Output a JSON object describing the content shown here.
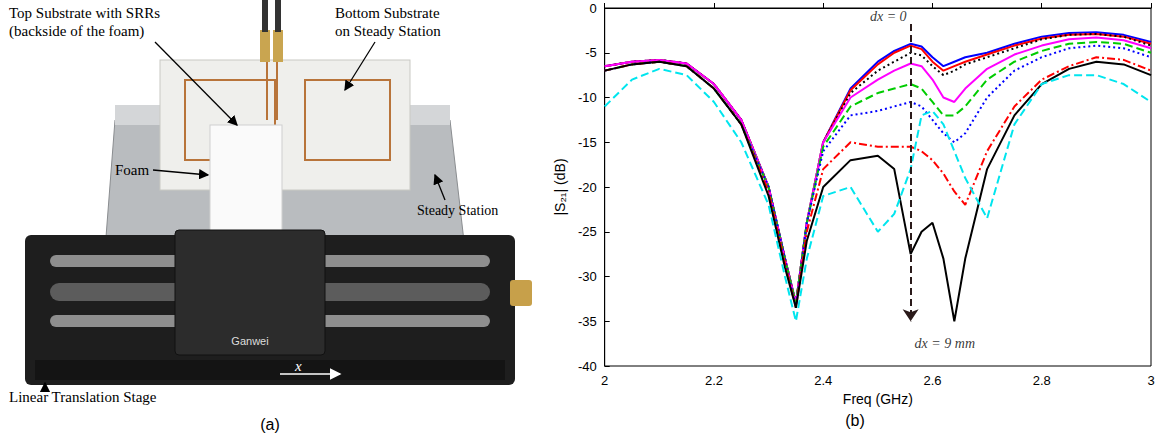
{
  "panel_a": {
    "caption": "(a)",
    "labels": {
      "top_substrate": [
        "Top Substrate with SRRs",
        "(backside of the foam)"
      ],
      "bottom_substrate": [
        "Bottom Substrate",
        "on Steady Station"
      ],
      "foam": [
        "Foam"
      ],
      "steady_station": [
        "Steady Station"
      ],
      "stage": [
        "Linear Translation Stage"
      ],
      "axis": [
        "x"
      ],
      "brand": [
        "Ganwei"
      ]
    }
  },
  "chart_data": {
    "type": "line",
    "caption": "(b)",
    "x_label": "Freq (GHz)",
    "y_label": "|S₂₁| (dB)",
    "x": [
      2.0,
      2.05,
      2.1,
      2.15,
      2.2,
      2.25,
      2.3,
      2.33,
      2.35,
      2.37,
      2.4,
      2.45,
      2.5,
      2.53,
      2.56,
      2.58,
      2.6,
      2.62,
      2.64,
      2.66,
      2.7,
      2.75,
      2.8,
      2.85,
      2.9,
      2.95,
      3.0
    ],
    "xlim": [
      2,
      3
    ],
    "xticks": [
      2,
      2.2,
      2.4,
      2.6,
      2.8,
      3
    ],
    "ylim": [
      -40,
      0
    ],
    "yticks": [
      -40,
      -35,
      -30,
      -25,
      -20,
      -15,
      -10,
      -5,
      0
    ],
    "grid": false,
    "series": [
      {
        "color": "#0000ff",
        "line_style": "solid",
        "values": [
          -6.5,
          -6,
          -5.8,
          -6.2,
          -8.5,
          -12.5,
          -20,
          -28,
          -33,
          -24,
          -15,
          -9,
          -6,
          -4.8,
          -4,
          -4.3,
          -5.5,
          -6.5,
          -6,
          -5.5,
          -5,
          -4,
          -3.2,
          -2.8,
          -2.7,
          -3,
          -3.8
        ]
      },
      {
        "color": "#ff0000",
        "line_style": "solid",
        "values": [
          -6.5,
          -6,
          -5.8,
          -6.2,
          -8.5,
          -12.5,
          -20,
          -28,
          -33,
          -24,
          -15,
          -9.2,
          -6.3,
          -5,
          -4.2,
          -4.6,
          -6,
          -7,
          -6.5,
          -6,
          -5.2,
          -4.2,
          -3.4,
          -3,
          -2.9,
          -3.2,
          -4
        ]
      },
      {
        "color": "#000000",
        "line_style": "dotted",
        "values": [
          -6.5,
          -6,
          -5.8,
          -6.2,
          -8.5,
          -12.5,
          -20,
          -28,
          -33,
          -24,
          -15,
          -9.5,
          -7,
          -6,
          -5,
          -5.3,
          -6.5,
          -7.5,
          -7,
          -6.3,
          -5.5,
          -4.5,
          -3.5,
          -3,
          -2.9,
          -3.2,
          -4.2
        ]
      },
      {
        "color": "#ff00ff",
        "line_style": "solid",
        "values": [
          -6.5,
          -6,
          -5.8,
          -6.2,
          -8.5,
          -12.5,
          -20,
          -28,
          -33,
          -24,
          -15,
          -10,
          -8,
          -7,
          -6.2,
          -6.5,
          -8,
          -10,
          -10.5,
          -9,
          -6.8,
          -5.2,
          -4.2,
          -3.5,
          -3.3,
          -3.6,
          -4.5
        ]
      },
      {
        "color": "#00cc00",
        "line_style": "dashed",
        "values": [
          -7,
          -6.3,
          -6,
          -6.5,
          -9,
          -13,
          -20,
          -28,
          -33,
          -24,
          -15.5,
          -11,
          -9.5,
          -9,
          -8.5,
          -9,
          -10.5,
          -12,
          -12,
          -11,
          -8,
          -6,
          -4.8,
          -4,
          -3.8,
          -4,
          -5
        ]
      },
      {
        "color": "#0000ff",
        "line_style": "dotted",
        "values": [
          -7,
          -6.3,
          -6,
          -6.5,
          -9,
          -13,
          -20,
          -28,
          -33.5,
          -24,
          -16,
          -12,
          -11.5,
          -11,
          -10.5,
          -11,
          -12.5,
          -14,
          -15,
          -14,
          -10,
          -7,
          -5.5,
          -4.5,
          -4.2,
          -4.5,
          -5.5
        ]
      },
      {
        "color": "#ff0000",
        "line_style": "dashdot",
        "values": [
          -7,
          -6.3,
          -6,
          -6.5,
          -9,
          -13,
          -20.5,
          -28.5,
          -33.5,
          -25,
          -18,
          -15,
          -15.5,
          -15.5,
          -15.5,
          -16,
          -17,
          -18.5,
          -20.5,
          -22,
          -16,
          -11,
          -8,
          -6.5,
          -5.5,
          -5.8,
          -7
        ]
      },
      {
        "color": "#000000",
        "line_style": "solid",
        "values": [
          -7,
          -6.3,
          -6,
          -6.5,
          -9,
          -13,
          -21,
          -29,
          -33.5,
          -26,
          -20,
          -17,
          -16.5,
          -18,
          -27.5,
          -25,
          -24,
          -28,
          -35,
          -28,
          -18,
          -12,
          -8.5,
          -6.8,
          -6,
          -6.3,
          -7.5
        ]
      },
      {
        "color": "#00e5ee",
        "line_style": "dashed",
        "values": [
          -11,
          -8,
          -6.8,
          -7.5,
          -10.5,
          -15,
          -22,
          -30,
          -35,
          -28,
          -21,
          -20,
          -25,
          -23,
          -18,
          -12,
          -11.5,
          -13,
          -16,
          -19,
          -23.5,
          -13,
          -8.5,
          -7.5,
          -7.5,
          -8.5,
          -10.5
        ]
      }
    ],
    "annotations": [
      {
        "text": "dx = 0",
        "x": 2.56,
        "y": -1
      },
      {
        "text": "dx = 9 mm",
        "x": 2.56,
        "y": -37.5
      }
    ],
    "arrow": {
      "x": 2.56,
      "y_from": -1.8,
      "y_to": -35
    }
  }
}
